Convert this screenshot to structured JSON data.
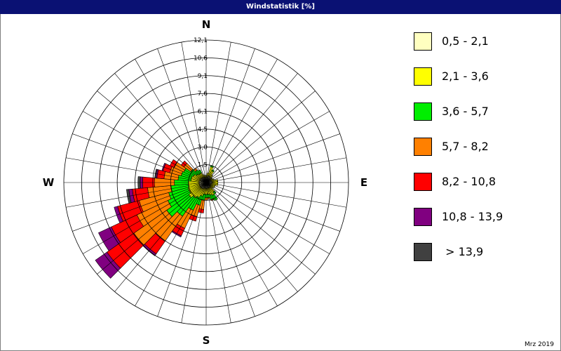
{
  "title": "Windstatistik [%]",
  "footnote": "Mrz 2019",
  "chart_data": {
    "type": "wind-rose",
    "title": "Windstatistik [%]",
    "directions": [
      {
        "label": "N",
        "angle": 0
      },
      {
        "label": "E",
        "angle": 90
      },
      {
        "label": "S",
        "angle": 180
      },
      {
        "label": "W",
        "angle": 270
      }
    ],
    "radial_ticks": [
      "1,5",
      "3,0",
      "4,5",
      "6,1",
      "7,6",
      "9,1",
      "10,6",
      "12,1"
    ],
    "radial_max": 12.1,
    "sectors": 36,
    "classes": [
      {
        "label": "0,5 - 2,1",
        "color": "#ffffc0"
      },
      {
        "label": "2,1 - 3,6",
        "color": "#ffff00"
      },
      {
        "label": "3,6 - 5,7",
        "color": "#00ee00"
      },
      {
        "label": "5,7 - 8,2",
        "color": "#ff8000"
      },
      {
        "label": "8,2 - 10,8",
        "color": "#ff0000"
      },
      {
        "label": "10,8 - 13,9",
        "color": "#800080"
      },
      {
        "label": " > 13,9",
        "color": "#404040"
      }
    ],
    "series_cumulative_by_direction": [
      {
        "dir": 0,
        "cum": [
          0.4,
          0.6,
          0.6,
          0.6,
          0.6,
          0.6,
          0.6
        ]
      },
      {
        "dir": 10,
        "cum": [
          0.5,
          0.8,
          0.8,
          0.8,
          0.8,
          0.8,
          0.8
        ]
      },
      {
        "dir": 20,
        "cum": [
          0.6,
          1.4,
          1.5,
          1.5,
          1.5,
          1.5,
          1.5
        ]
      },
      {
        "dir": 30,
        "cum": [
          0.6,
          1.1,
          1.2,
          1.2,
          1.2,
          1.2,
          1.2
        ]
      },
      {
        "dir": 40,
        "cum": [
          0.5,
          0.8,
          0.8,
          0.8,
          0.8,
          0.8,
          0.8
        ]
      },
      {
        "dir": 50,
        "cum": [
          0.4,
          0.6,
          0.6,
          0.6,
          0.6,
          0.6,
          0.6
        ]
      },
      {
        "dir": 60,
        "cum": [
          0.4,
          0.6,
          0.6,
          0.6,
          0.6,
          0.6,
          0.6
        ]
      },
      {
        "dir": 70,
        "cum": [
          0.4,
          0.7,
          0.7,
          0.7,
          0.7,
          0.7,
          0.7
        ]
      },
      {
        "dir": 80,
        "cum": [
          0.5,
          1.0,
          1.0,
          1.0,
          1.0,
          1.0,
          1.0
        ]
      },
      {
        "dir": 90,
        "cum": [
          0.5,
          1.0,
          1.0,
          1.0,
          1.0,
          1.0,
          1.0
        ]
      },
      {
        "dir": 100,
        "cum": [
          0.5,
          1.0,
          1.0,
          1.0,
          1.0,
          1.0,
          1.0
        ]
      },
      {
        "dir": 110,
        "cum": [
          0.4,
          0.8,
          0.8,
          0.8,
          0.8,
          0.8,
          0.8
        ]
      },
      {
        "dir": 120,
        "cum": [
          0.4,
          0.8,
          0.8,
          0.8,
          0.8,
          0.8,
          0.8
        ]
      },
      {
        "dir": 130,
        "cum": [
          0.4,
          0.7,
          0.7,
          0.7,
          0.7,
          0.7,
          0.7
        ]
      },
      {
        "dir": 140,
        "cum": [
          0.5,
          1.0,
          1.2,
          1.2,
          1.2,
          1.2,
          1.2
        ]
      },
      {
        "dir": 150,
        "cum": [
          0.5,
          1.2,
          1.7,
          1.7,
          1.7,
          1.7,
          1.7
        ]
      },
      {
        "dir": 160,
        "cum": [
          0.5,
          1.1,
          1.5,
          1.6,
          1.6,
          1.6,
          1.6
        ]
      },
      {
        "dir": 170,
        "cum": [
          0.5,
          1.0,
          1.3,
          1.4,
          1.4,
          1.4,
          1.4
        ]
      },
      {
        "dir": 180,
        "cum": [
          0.5,
          1.0,
          1.3,
          1.5,
          1.5,
          1.5,
          1.5
        ]
      },
      {
        "dir": 190,
        "cum": [
          0.5,
          1.0,
          1.5,
          2.3,
          2.6,
          2.6,
          2.6
        ]
      },
      {
        "dir": 200,
        "cum": [
          0.5,
          1.2,
          2.0,
          3.0,
          3.4,
          3.4,
          3.4
        ]
      },
      {
        "dir": 210,
        "cum": [
          0.6,
          1.4,
          2.6,
          4.3,
          5.0,
          5.1,
          5.1
        ]
      },
      {
        "dir": 220,
        "cum": [
          0.6,
          1.6,
          3.5,
          6.1,
          7.4,
          7.6,
          7.6
        ]
      },
      {
        "dir": 230,
        "cum": [
          0.6,
          1.8,
          4.1,
          7.5,
          10.3,
          11.5,
          11.5
        ]
      },
      {
        "dir": 240,
        "cum": [
          0.6,
          1.6,
          3.6,
          6.5,
          8.9,
          10.1,
          10.1
        ]
      },
      {
        "dir": 250,
        "cum": [
          0.6,
          1.6,
          3.3,
          5.9,
          7.8,
          8.1,
          8.1
        ]
      },
      {
        "dir": 260,
        "cum": [
          0.6,
          1.5,
          3.0,
          5.0,
          6.3,
          6.6,
          6.8
        ]
      },
      {
        "dir": 270,
        "cum": [
          0.6,
          1.5,
          2.7,
          4.4,
          5.4,
          5.6,
          5.8
        ]
      },
      {
        "dir": 280,
        "cum": [
          0.6,
          1.3,
          2.4,
          3.6,
          4.2,
          4.3,
          4.4
        ]
      },
      {
        "dir": 290,
        "cum": [
          0.5,
          1.3,
          2.2,
          3.2,
          3.8,
          3.9,
          3.9
        ]
      },
      {
        "dir": 300,
        "cum": [
          0.6,
          1.2,
          2.1,
          3.0,
          3.4,
          3.4,
          3.4
        ]
      },
      {
        "dir": 310,
        "cum": [
          0.5,
          1.0,
          1.6,
          2.3,
          2.6,
          2.6,
          2.6
        ]
      },
      {
        "dir": 320,
        "cum": [
          0.5,
          0.9,
          1.3,
          1.5,
          1.5,
          1.5,
          1.5
        ]
      },
      {
        "dir": 330,
        "cum": [
          0.5,
          0.9,
          1.2,
          1.2,
          1.2,
          1.2,
          1.2
        ]
      },
      {
        "dir": 340,
        "cum": [
          0.4,
          0.7,
          0.7,
          0.7,
          0.7,
          0.7,
          0.7
        ]
      },
      {
        "dir": 350,
        "cum": [
          0.4,
          0.6,
          0.6,
          0.6,
          0.6,
          0.6,
          0.6
        ]
      }
    ]
  }
}
